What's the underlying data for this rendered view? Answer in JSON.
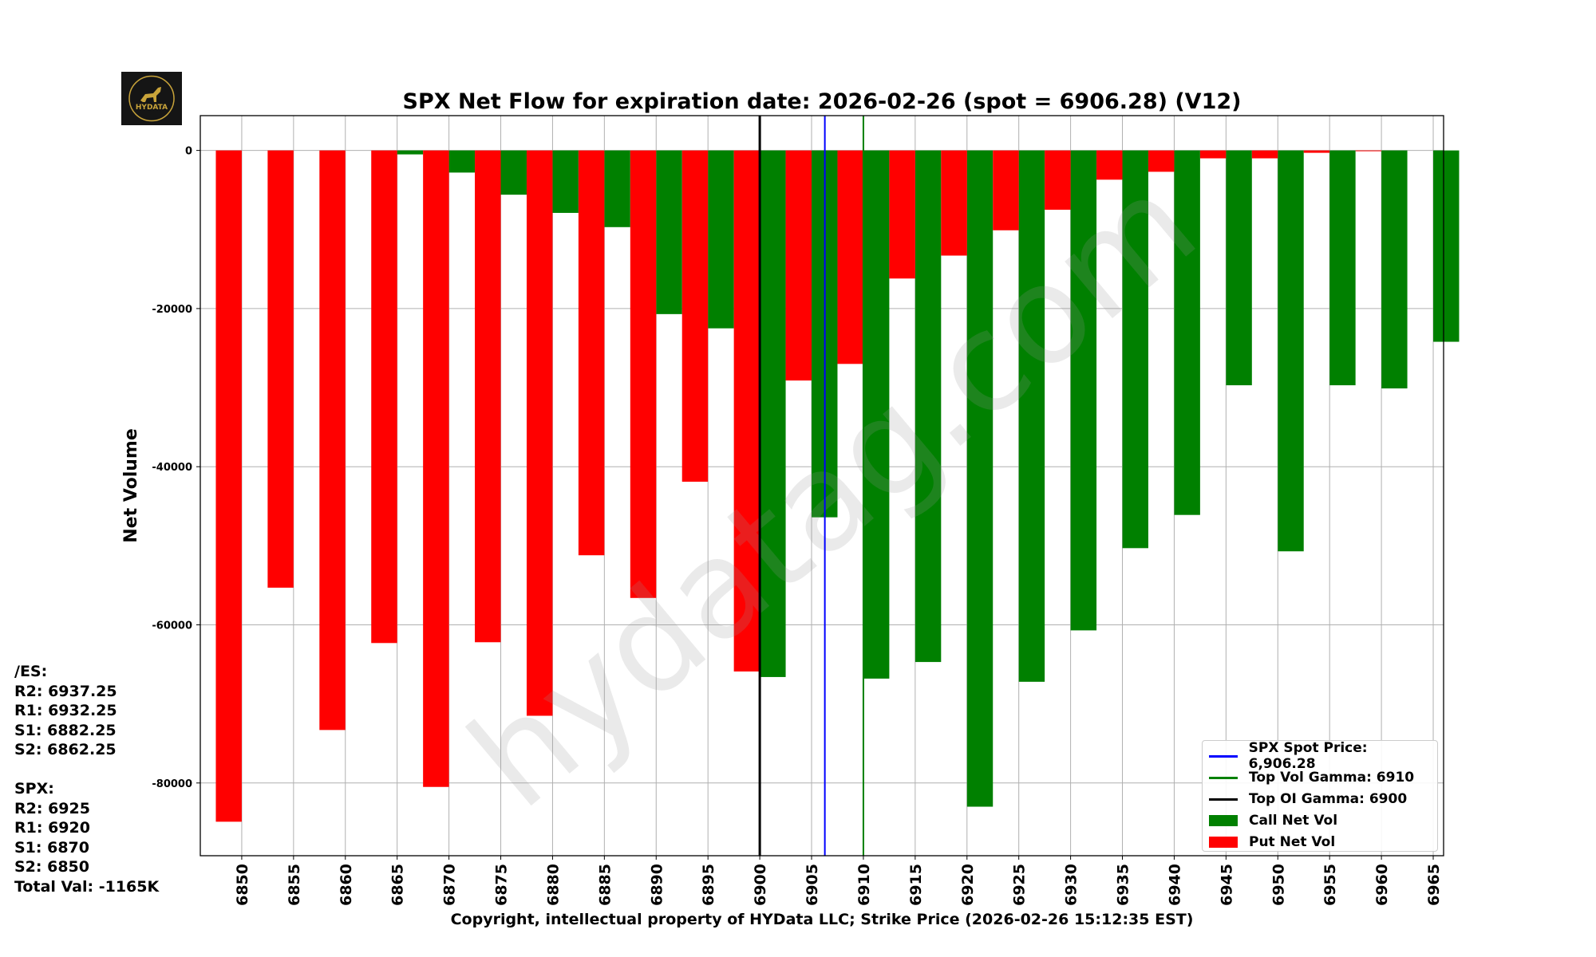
{
  "chart_data": {
    "type": "bar",
    "title": "SPX Net Flow for expiration date: 2026-02-26 (spot = 6906.28) (V12)",
    "xlabel": "Copyright, intellectual property of HYData LLC; Strike Price (2026-02-26 15:12:35 EST)",
    "ylabel": "Net Volume",
    "categories": [
      6850,
      6855,
      6860,
      6865,
      6870,
      6875,
      6880,
      6885,
      6890,
      6895,
      6900,
      6905,
      6910,
      6915,
      6920,
      6925,
      6930,
      6935,
      6940,
      6945,
      6950,
      6955,
      6960,
      6965
    ],
    "xlim": [
      6846,
      6966
    ],
    "ylim": [
      -89200,
      4400
    ],
    "yticks": [
      0,
      -20000,
      -40000,
      -60000,
      -80000
    ],
    "grid": true,
    "legend_position": "bottom-right",
    "series": [
      {
        "name": "Call Net Vol",
        "color": "#008000",
        "values": [
          0,
          0,
          0,
          -500,
          -2800,
          -5600,
          -7900,
          -9700,
          -20700,
          -22500,
          -66600,
          -46400,
          -66800,
          -64700,
          -83000,
          -67200,
          -60700,
          -50300,
          -46100,
          -29700,
          -50700,
          -29700,
          -30100,
          -24200
        ]
      },
      {
        "name": "Put Net Vol",
        "color": "#ff0000",
        "values": [
          -84900,
          -55300,
          -73300,
          -62300,
          -80500,
          -62200,
          -71500,
          -51200,
          -56600,
          -41900,
          -65900,
          -29100,
          -27000,
          -16200,
          -13300,
          -10100,
          -7500,
          -3700,
          -2700,
          -1000,
          -1000,
          -300,
          -100,
          0
        ]
      }
    ],
    "vlines": [
      {
        "name": "SPX Spot Price: 6,906.28",
        "x": 6906.28,
        "color": "#0000ff"
      },
      {
        "name": "Top Vol Gamma: 6910",
        "x": 6910,
        "color": "#008000"
      },
      {
        "name": "Top OI Gamma: 6900",
        "x": 6900,
        "color": "#000000"
      }
    ]
  },
  "watermark": "hydatag.com",
  "logo_text": "HYDATA",
  "side_levels": "/ES:\nR2: 6937.25\nR1: 6932.25\nS1: 6882.25\nS2: 6862.25\n\nSPX:\nR2: 6925\nR1: 6920\nS1: 6870\nS2: 6850\nTotal Val: -1165K"
}
